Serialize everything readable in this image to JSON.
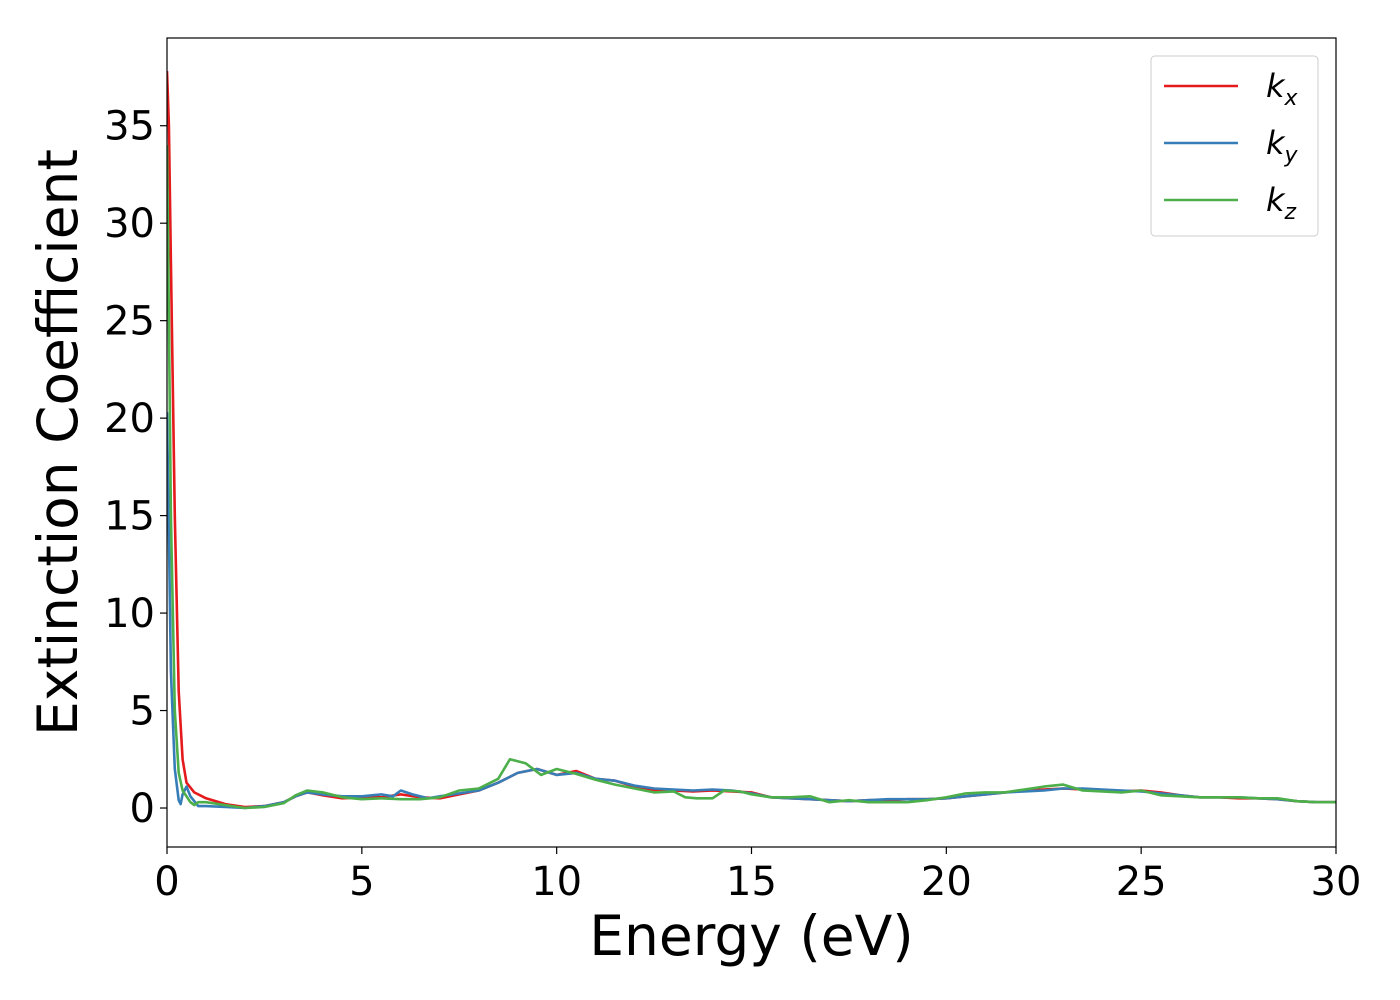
{
  "chart_data": {
    "type": "line",
    "xlabel": "Energy (eV)",
    "ylabel": "Extinction Coefficient",
    "xlim": [
      0,
      30
    ],
    "ylim": [
      -2,
      39.5
    ],
    "xticks": [
      0,
      5,
      10,
      15,
      20,
      25,
      30
    ],
    "xtick_labels": [
      "0",
      "5",
      "10",
      "15",
      "20",
      "25",
      "30"
    ],
    "yticks": [
      0,
      5,
      10,
      15,
      20,
      25,
      30,
      35
    ],
    "ytick_labels": [
      "0",
      "5",
      "10",
      "15",
      "20",
      "25",
      "30",
      "35"
    ],
    "grid": false,
    "legend_position": "top-right",
    "series": [
      {
        "name": "k_x",
        "label_main": "k",
        "label_sub": "x",
        "color": "#e41a1c",
        "x": [
          0,
          0.05,
          0.1,
          0.2,
          0.3,
          0.4,
          0.5,
          0.7,
          1.0,
          1.5,
          2.0,
          2.5,
          3.0,
          3.3,
          3.6,
          4.0,
          4.5,
          5.0,
          5.5,
          6.0,
          6.5,
          7.0,
          7.5,
          8.0,
          8.5,
          9.0,
          9.5,
          10.0,
          10.5,
          11.0,
          11.5,
          12.0,
          12.5,
          13.0,
          13.5,
          14.0,
          14.5,
          15.0,
          15.5,
          16.0,
          16.5,
          17.0,
          17.5,
          18.0,
          18.5,
          19.0,
          19.5,
          20.0,
          20.5,
          21.0,
          21.5,
          22.0,
          22.5,
          23.0,
          23.5,
          24.0,
          24.5,
          25.0,
          25.5,
          26.0,
          26.5,
          27.0,
          27.5,
          28.0,
          28.5,
          29.0,
          29.5,
          30.0
        ],
        "y": [
          37.8,
          35,
          28,
          15,
          6,
          2.5,
          1.3,
          0.8,
          0.5,
          0.2,
          0.05,
          0.1,
          0.3,
          0.6,
          0.8,
          0.65,
          0.5,
          0.55,
          0.55,
          0.7,
          0.55,
          0.5,
          0.7,
          0.9,
          1.3,
          1.8,
          2.0,
          1.7,
          1.9,
          1.5,
          1.4,
          1.1,
          0.9,
          0.9,
          0.85,
          0.9,
          0.85,
          0.8,
          0.55,
          0.5,
          0.45,
          0.4,
          0.35,
          0.4,
          0.4,
          0.45,
          0.45,
          0.5,
          0.6,
          0.7,
          0.8,
          0.9,
          0.95,
          1.0,
          0.95,
          0.9,
          0.85,
          0.9,
          0.8,
          0.65,
          0.55,
          0.55,
          0.5,
          0.5,
          0.45,
          0.35,
          0.3,
          0.3
        ]
      },
      {
        "name": "k_y",
        "label_main": "k",
        "label_sub": "y",
        "color": "#377eb8",
        "x": [
          0,
          0.05,
          0.1,
          0.2,
          0.3,
          0.35,
          0.4,
          0.5,
          0.6,
          0.8,
          1.0,
          1.5,
          2.0,
          2.5,
          3.0,
          3.3,
          3.6,
          4.0,
          4.5,
          5.0,
          5.5,
          5.8,
          6.0,
          6.3,
          6.7,
          7.0,
          7.5,
          8.0,
          8.5,
          9.0,
          9.5,
          10.0,
          10.5,
          11.0,
          11.5,
          12.0,
          12.5,
          13.0,
          13.5,
          14.0,
          14.5,
          15.0,
          15.5,
          16.0,
          16.5,
          17.0,
          17.5,
          18.0,
          18.5,
          19.0,
          19.5,
          20.0,
          20.5,
          21.0,
          21.5,
          22.0,
          22.5,
          23.0,
          23.5,
          24.0,
          24.5,
          25.0,
          25.5,
          26.0,
          26.5,
          27.0,
          27.5,
          28.0,
          28.5,
          29.0,
          29.5,
          30.0
        ],
        "y": [
          20.3,
          14,
          7,
          2.0,
          0.4,
          0.2,
          0.7,
          1.1,
          0.6,
          0.1,
          0.1,
          0.05,
          0.0,
          0.1,
          0.3,
          0.6,
          0.8,
          0.7,
          0.6,
          0.6,
          0.7,
          0.6,
          0.9,
          0.7,
          0.5,
          0.6,
          0.75,
          0.9,
          1.3,
          1.8,
          2.0,
          1.7,
          1.8,
          1.5,
          1.4,
          1.15,
          1.0,
          0.95,
          0.9,
          0.95,
          0.9,
          0.75,
          0.55,
          0.5,
          0.45,
          0.4,
          0.35,
          0.4,
          0.45,
          0.45,
          0.45,
          0.5,
          0.6,
          0.7,
          0.8,
          0.85,
          0.9,
          1.0,
          1.0,
          0.95,
          0.9,
          0.85,
          0.75,
          0.65,
          0.55,
          0.55,
          0.55,
          0.5,
          0.45,
          0.35,
          0.3,
          0.3
        ]
      },
      {
        "name": "k_z",
        "label_main": "k",
        "label_sub": "z",
        "color": "#4daf4a",
        "x": [
          0,
          0.05,
          0.1,
          0.2,
          0.3,
          0.4,
          0.5,
          0.6,
          0.7,
          0.8,
          1.0,
          1.5,
          2.0,
          2.5,
          3.0,
          3.3,
          3.6,
          4.0,
          4.5,
          5.0,
          5.5,
          6.0,
          6.5,
          7.0,
          7.5,
          8.0,
          8.5,
          8.8,
          9.2,
          9.6,
          10.0,
          10.5,
          11.0,
          11.5,
          12.0,
          12.5,
          13.0,
          13.3,
          13.6,
          14.0,
          14.3,
          14.7,
          15.0,
          15.5,
          16.0,
          16.5,
          17.0,
          17.5,
          18.0,
          18.5,
          19.0,
          19.5,
          20.0,
          20.5,
          21.0,
          21.5,
          22.0,
          22.5,
          23.0,
          23.5,
          24.0,
          24.5,
          25.0,
          25.5,
          26.0,
          26.5,
          27.0,
          27.5,
          28.0,
          28.5,
          29.0,
          29.5,
          30.0
        ],
        "y": [
          34,
          25,
          15,
          5,
          1.8,
          0.9,
          0.6,
          0.3,
          0.15,
          0.3,
          0.3,
          0.15,
          0.0,
          0.05,
          0.25,
          0.65,
          0.9,
          0.8,
          0.55,
          0.45,
          0.5,
          0.45,
          0.45,
          0.55,
          0.9,
          1.0,
          1.5,
          2.5,
          2.3,
          1.7,
          2.0,
          1.75,
          1.45,
          1.2,
          1.0,
          0.8,
          0.85,
          0.55,
          0.5,
          0.5,
          0.9,
          0.85,
          0.7,
          0.55,
          0.55,
          0.6,
          0.3,
          0.4,
          0.3,
          0.3,
          0.3,
          0.4,
          0.55,
          0.75,
          0.8,
          0.8,
          0.95,
          1.1,
          1.2,
          0.9,
          0.85,
          0.8,
          0.9,
          0.65,
          0.6,
          0.55,
          0.55,
          0.55,
          0.5,
          0.5,
          0.35,
          0.3,
          0.3
        ]
      }
    ]
  }
}
